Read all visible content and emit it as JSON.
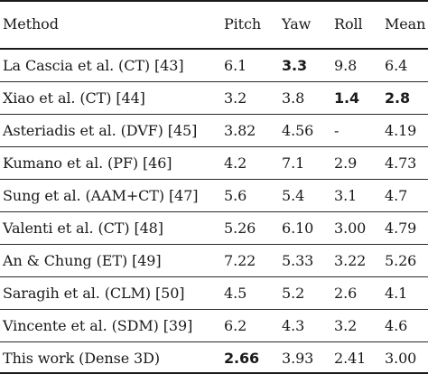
{
  "table": {
    "headers": [
      "Method",
      "Pitch",
      "Yaw",
      "Roll",
      "Mean"
    ],
    "rows": [
      {
        "method": "La Cascia et al. (CT) [43]",
        "pitch": "6.1",
        "yaw": "3.3",
        "roll": "9.8",
        "mean": "6.4",
        "bold": [
          "yaw"
        ]
      },
      {
        "method": "Xiao et al. (CT) [44]",
        "pitch": "3.2",
        "yaw": "3.8",
        "roll": "1.4",
        "mean": "2.8",
        "bold": [
          "roll",
          "mean"
        ]
      },
      {
        "method": "Asteriadis et al. (DVF) [45]",
        "pitch": "3.82",
        "yaw": "4.56",
        "roll": "-",
        "mean": "4.19",
        "bold": []
      },
      {
        "method": "Kumano et al. (PF) [46]",
        "pitch": "4.2",
        "yaw": "7.1",
        "roll": "2.9",
        "mean": "4.73",
        "bold": []
      },
      {
        "method": "Sung et al. (AAM+CT) [47]",
        "pitch": "5.6",
        "yaw": "5.4",
        "roll": "3.1",
        "mean": "4.7",
        "bold": []
      },
      {
        "method": "Valenti et al. (CT) [48]",
        "pitch": "5.26",
        "yaw": "6.10",
        "roll": "3.00",
        "mean": "4.79",
        "bold": []
      },
      {
        "method": "An & Chung (ET) [49]",
        "pitch": "7.22",
        "yaw": "5.33",
        "roll": "3.22",
        "mean": "5.26",
        "bold": []
      },
      {
        "method": "Saragih et al. (CLM) [50]",
        "pitch": "4.5",
        "yaw": "5.2",
        "roll": "2.6",
        "mean": "4.1",
        "bold": []
      },
      {
        "method": "Vincente et al. (SDM) [39]",
        "pitch": "6.2",
        "yaw": "4.3",
        "roll": "3.2",
        "mean": "4.6",
        "bold": []
      },
      {
        "method": "This work (Dense 3D)",
        "pitch": "2.66",
        "yaw": "3.93",
        "roll": "2.41",
        "mean": "3.00",
        "bold": [
          "pitch"
        ]
      }
    ]
  }
}
